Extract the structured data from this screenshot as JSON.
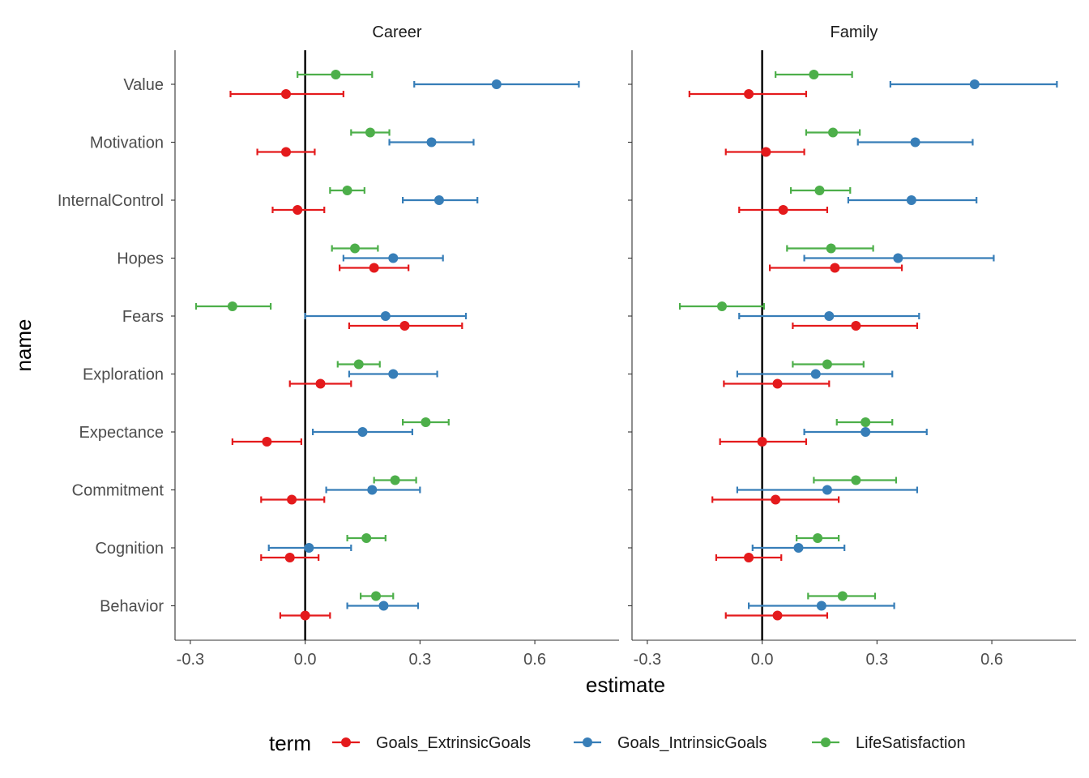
{
  "chart_data": {
    "type": "scatter",
    "subtype": "coefficient-plot-with-error-bars",
    "facets": [
      "Career",
      "Family"
    ],
    "ylabel": "name",
    "xlabel": "estimate",
    "xlim": [
      -0.34,
      0.82
    ],
    "xticks": [
      -0.3,
      0.0,
      0.3,
      0.6
    ],
    "xtick_labels": [
      "-0.3",
      "0.0",
      "0.3",
      "0.6"
    ],
    "reference_line_x": 0,
    "grid": false,
    "categories": [
      "Value",
      "Motivation",
      "InternalControl",
      "Hopes",
      "Fears",
      "Exploration",
      "Expectance",
      "Commitment",
      "Cognition",
      "Behavior"
    ],
    "legend": {
      "title": "term",
      "position": "bottom",
      "entries": [
        "Goals_ExtrinsicGoals",
        "Goals_IntrinsicGoals",
        "LifeSatisfaction"
      ]
    },
    "colors": {
      "Goals_ExtrinsicGoals": "#e41a1c",
      "Goals_IntrinsicGoals": "#377eb8",
      "LifeSatisfaction": "#4daf4a"
    },
    "series": [
      {
        "name": "Goals_ExtrinsicGoals",
        "color": "#e41a1c",
        "Career": [
          {
            "name": "Value",
            "estimate": -0.05,
            "low": -0.195,
            "high": 0.1
          },
          {
            "name": "Motivation",
            "estimate": -0.05,
            "low": -0.125,
            "high": 0.025
          },
          {
            "name": "InternalControl",
            "estimate": -0.02,
            "low": -0.085,
            "high": 0.05
          },
          {
            "name": "Hopes",
            "estimate": 0.18,
            "low": 0.09,
            "high": 0.27
          },
          {
            "name": "Fears",
            "estimate": 0.26,
            "low": 0.115,
            "high": 0.41
          },
          {
            "name": "Exploration",
            "estimate": 0.04,
            "low": -0.04,
            "high": 0.12
          },
          {
            "name": "Expectance",
            "estimate": -0.1,
            "low": -0.19,
            "high": -0.01
          },
          {
            "name": "Commitment",
            "estimate": -0.035,
            "low": -0.115,
            "high": 0.05
          },
          {
            "name": "Cognition",
            "estimate": -0.04,
            "low": -0.115,
            "high": 0.035
          },
          {
            "name": "Behavior",
            "estimate": 0.0,
            "low": -0.065,
            "high": 0.065
          }
        ],
        "Family": [
          {
            "name": "Value",
            "estimate": -0.035,
            "low": -0.19,
            "high": 0.115
          },
          {
            "name": "Motivation",
            "estimate": 0.01,
            "low": -0.095,
            "high": 0.11
          },
          {
            "name": "InternalControl",
            "estimate": 0.055,
            "low": -0.06,
            "high": 0.17
          },
          {
            "name": "Hopes",
            "estimate": 0.19,
            "low": 0.02,
            "high": 0.365
          },
          {
            "name": "Fears",
            "estimate": 0.245,
            "low": 0.08,
            "high": 0.405
          },
          {
            "name": "Exploration",
            "estimate": 0.04,
            "low": -0.1,
            "high": 0.175
          },
          {
            "name": "Expectance",
            "estimate": 0.0,
            "low": -0.11,
            "high": 0.115
          },
          {
            "name": "Commitment",
            "estimate": 0.035,
            "low": -0.13,
            "high": 0.2
          },
          {
            "name": "Cognition",
            "estimate": -0.035,
            "low": -0.12,
            "high": 0.05
          },
          {
            "name": "Behavior",
            "estimate": 0.04,
            "low": -0.095,
            "high": 0.17
          }
        ]
      },
      {
        "name": "Goals_IntrinsicGoals",
        "color": "#377eb8",
        "Career": [
          {
            "name": "Value",
            "estimate": 0.5,
            "low": 0.285,
            "high": 0.715
          },
          {
            "name": "Motivation",
            "estimate": 0.33,
            "low": 0.22,
            "high": 0.44
          },
          {
            "name": "InternalControl",
            "estimate": 0.35,
            "low": 0.255,
            "high": 0.45
          },
          {
            "name": "Hopes",
            "estimate": 0.23,
            "low": 0.1,
            "high": 0.36
          },
          {
            "name": "Fears",
            "estimate": 0.21,
            "low": 0.0,
            "high": 0.42
          },
          {
            "name": "Exploration",
            "estimate": 0.23,
            "low": 0.115,
            "high": 0.345
          },
          {
            "name": "Expectance",
            "estimate": 0.15,
            "low": 0.02,
            "high": 0.28
          },
          {
            "name": "Commitment",
            "estimate": 0.175,
            "low": 0.055,
            "high": 0.3
          },
          {
            "name": "Cognition",
            "estimate": 0.01,
            "low": -0.095,
            "high": 0.12
          },
          {
            "name": "Behavior",
            "estimate": 0.205,
            "low": 0.11,
            "high": 0.295
          }
        ],
        "Family": [
          {
            "name": "Value",
            "estimate": 0.555,
            "low": 0.335,
            "high": 0.77
          },
          {
            "name": "Motivation",
            "estimate": 0.4,
            "low": 0.25,
            "high": 0.55
          },
          {
            "name": "InternalControl",
            "estimate": 0.39,
            "low": 0.225,
            "high": 0.56
          },
          {
            "name": "Hopes",
            "estimate": 0.355,
            "low": 0.11,
            "high": 0.605
          },
          {
            "name": "Fears",
            "estimate": 0.175,
            "low": -0.06,
            "high": 0.41
          },
          {
            "name": "Exploration",
            "estimate": 0.14,
            "low": -0.065,
            "high": 0.34
          },
          {
            "name": "Expectance",
            "estimate": 0.27,
            "low": 0.11,
            "high": 0.43
          },
          {
            "name": "Commitment",
            "estimate": 0.17,
            "low": -0.065,
            "high": 0.405
          },
          {
            "name": "Cognition",
            "estimate": 0.095,
            "low": -0.025,
            "high": 0.215
          },
          {
            "name": "Behavior",
            "estimate": 0.155,
            "low": -0.035,
            "high": 0.345
          }
        ]
      },
      {
        "name": "LifeSatisfaction",
        "color": "#4daf4a",
        "Career": [
          {
            "name": "Value",
            "estimate": 0.08,
            "low": -0.02,
            "high": 0.175
          },
          {
            "name": "Motivation",
            "estimate": 0.17,
            "low": 0.12,
            "high": 0.22
          },
          {
            "name": "InternalControl",
            "estimate": 0.11,
            "low": 0.065,
            "high": 0.155
          },
          {
            "name": "Hopes",
            "estimate": 0.13,
            "low": 0.07,
            "high": 0.19
          },
          {
            "name": "Fears",
            "estimate": -0.19,
            "low": -0.285,
            "high": -0.09
          },
          {
            "name": "Exploration",
            "estimate": 0.14,
            "low": 0.085,
            "high": 0.195
          },
          {
            "name": "Expectance",
            "estimate": 0.315,
            "low": 0.255,
            "high": 0.375
          },
          {
            "name": "Commitment",
            "estimate": 0.235,
            "low": 0.18,
            "high": 0.29
          },
          {
            "name": "Cognition",
            "estimate": 0.16,
            "low": 0.11,
            "high": 0.21
          },
          {
            "name": "Behavior",
            "estimate": 0.185,
            "low": 0.145,
            "high": 0.23
          }
        ],
        "Family": [
          {
            "name": "Value",
            "estimate": 0.135,
            "low": 0.035,
            "high": 0.235
          },
          {
            "name": "Motivation",
            "estimate": 0.185,
            "low": 0.115,
            "high": 0.255
          },
          {
            "name": "InternalControl",
            "estimate": 0.15,
            "low": 0.075,
            "high": 0.23
          },
          {
            "name": "Hopes",
            "estimate": 0.18,
            "low": 0.065,
            "high": 0.29
          },
          {
            "name": "Fears",
            "estimate": -0.105,
            "low": -0.215,
            "high": 0.005
          },
          {
            "name": "Exploration",
            "estimate": 0.17,
            "low": 0.08,
            "high": 0.265
          },
          {
            "name": "Expectance",
            "estimate": 0.27,
            "low": 0.195,
            "high": 0.34
          },
          {
            "name": "Commitment",
            "estimate": 0.245,
            "low": 0.135,
            "high": 0.35
          },
          {
            "name": "Cognition",
            "estimate": 0.145,
            "low": 0.09,
            "high": 0.2
          },
          {
            "name": "Behavior",
            "estimate": 0.21,
            "low": 0.12,
            "high": 0.295
          }
        ]
      }
    ]
  }
}
